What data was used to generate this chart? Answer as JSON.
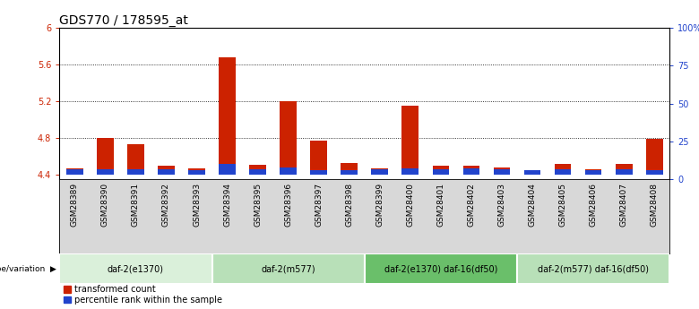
{
  "title": "GDS770 / 178595_at",
  "samples": [
    "GSM28389",
    "GSM28390",
    "GSM28391",
    "GSM28392",
    "GSM28393",
    "GSM28394",
    "GSM28395",
    "GSM28396",
    "GSM28397",
    "GSM28398",
    "GSM28399",
    "GSM28400",
    "GSM28401",
    "GSM28402",
    "GSM28403",
    "GSM28404",
    "GSM28405",
    "GSM28406",
    "GSM28407",
    "GSM28408"
  ],
  "red_values": [
    4.47,
    4.8,
    4.73,
    4.5,
    4.47,
    5.68,
    4.51,
    5.2,
    4.77,
    4.53,
    4.47,
    5.15,
    4.5,
    4.5,
    4.48,
    4.43,
    4.52,
    4.46,
    4.52,
    4.79
  ],
  "blue_heights": [
    0.055,
    0.055,
    0.055,
    0.055,
    0.045,
    0.12,
    0.055,
    0.082,
    0.045,
    0.045,
    0.055,
    0.065,
    0.055,
    0.065,
    0.055,
    0.045,
    0.055,
    0.045,
    0.055,
    0.045
  ],
  "base": 4.4,
  "ymin": 4.35,
  "ymax": 6.0,
  "yticks": [
    4.4,
    4.8,
    5.2,
    5.6,
    6.0
  ],
  "ytick_labels": [
    "4.4",
    "4.8",
    "5.2",
    "5.6",
    "6"
  ],
  "right_yticks": [
    0,
    25,
    50,
    75,
    100
  ],
  "right_ytick_labels": [
    "0",
    "25",
    "50",
    "75",
    "100%"
  ],
  "groups": [
    {
      "label": "daf-2(e1370)",
      "start": 0,
      "end": 5
    },
    {
      "label": "daf-2(m577)",
      "start": 5,
      "end": 10
    },
    {
      "label": "daf-2(e1370) daf-16(df50)",
      "start": 10,
      "end": 15
    },
    {
      "label": "daf-2(m577) daf-16(df50)",
      "start": 15,
      "end": 20
    }
  ],
  "group_colors": [
    "#daf0da",
    "#b8e0b8",
    "#6abf6a",
    "#b8e0b8"
  ],
  "red_color": "#cc2200",
  "blue_color": "#2244cc",
  "bar_width": 0.55,
  "legend_red": "transformed count",
  "legend_blue": "percentile rank within the sample",
  "left_tick_color": "#cc2200",
  "right_tick_color": "#2244cc",
  "title_fontsize": 10,
  "tick_fontsize": 7,
  "sample_fontsize": 6.5,
  "group_fontsize": 7,
  "sample_bg": "#d8d8d8",
  "plot_bg": "white"
}
